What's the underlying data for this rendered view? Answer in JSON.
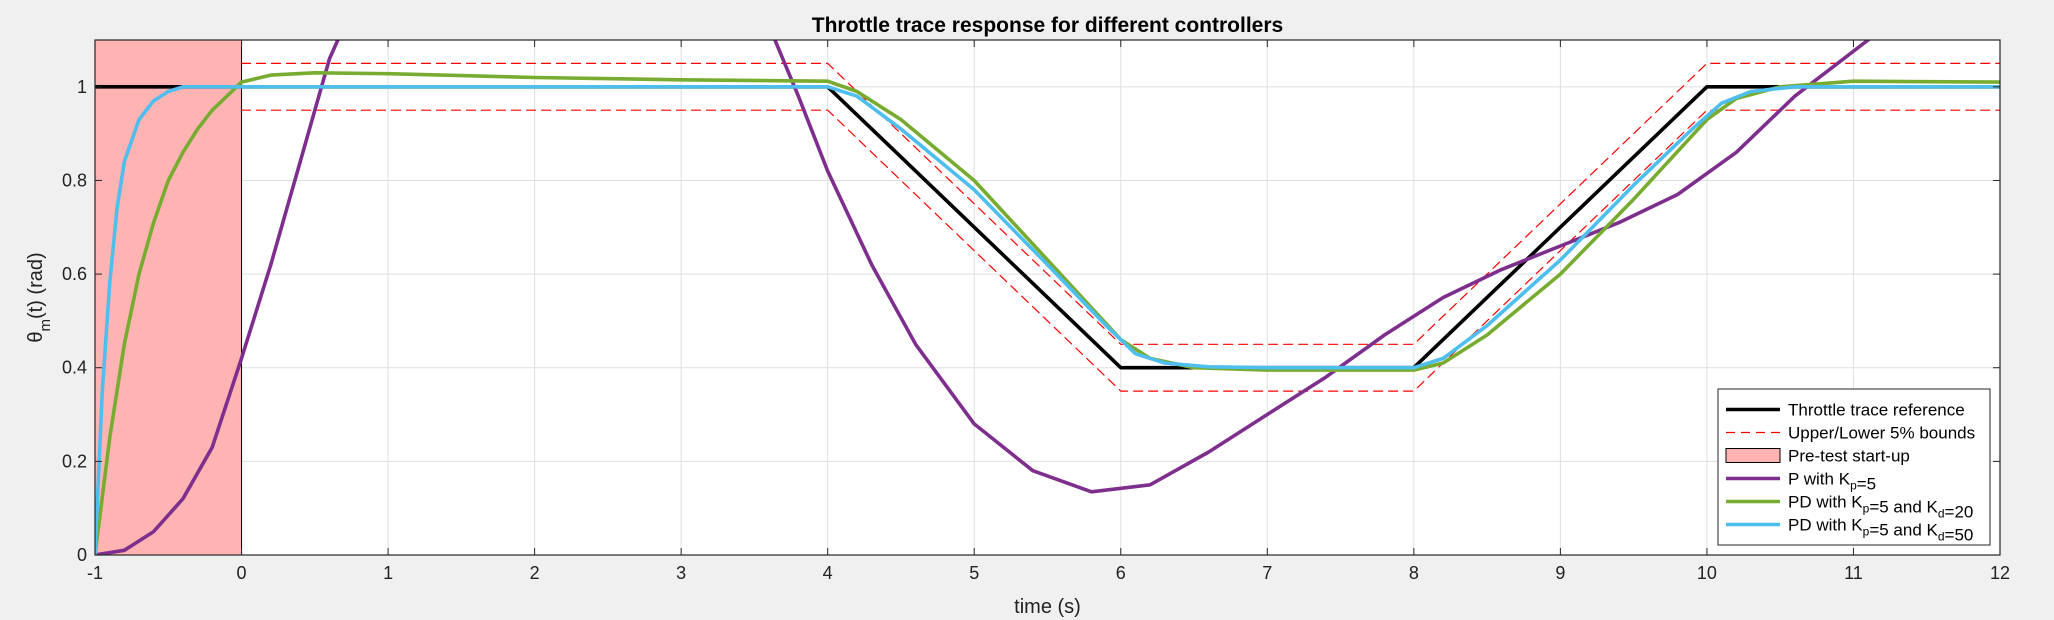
{
  "chart_data": {
    "type": "line",
    "title": "Throttle trace response for different controllers",
    "xlabel": "time (s)",
    "ylabel": {
      "main": "θ",
      "sub": "m",
      "rest": "(t) (rad)"
    },
    "xlim": [
      -1,
      12
    ],
    "ylim": [
      0,
      1.1
    ],
    "xticks": [
      -1,
      0,
      1,
      2,
      3,
      4,
      5,
      6,
      7,
      8,
      9,
      10,
      11,
      12
    ],
    "yticks": [
      0,
      0.2,
      0.4,
      0.6,
      0.8,
      1
    ],
    "grid": true,
    "legend_position": "bottom-right",
    "shaded_region": {
      "name": "Pre-test start-up",
      "x": [
        -1,
        0
      ],
      "color": "#ffb3b3"
    },
    "series": [
      {
        "name": "Throttle trace reference",
        "color": "#000000",
        "style": "solid",
        "x": [
          -1,
          4,
          6,
          8,
          10,
          12
        ],
        "y": [
          1,
          1,
          0.4,
          0.4,
          1,
          1
        ]
      },
      {
        "name": "Upper/Lower 5% bounds",
        "color": "#ff0000",
        "style": "dashed",
        "x": [
          0,
          4,
          6,
          8,
          10,
          12
        ],
        "y": [
          1.05,
          1.05,
          0.45,
          0.45,
          1.05,
          1.05
        ]
      },
      {
        "name": "Upper/Lower 5% bounds",
        "legend": false,
        "color": "#ff0000",
        "style": "dashed",
        "x": [
          0,
          4,
          6,
          8,
          10,
          12
        ],
        "y": [
          0.95,
          0.95,
          0.35,
          0.35,
          0.95,
          0.95
        ]
      },
      {
        "name": "P with K_p=5",
        "color": "#7e2f8e",
        "style": "solid",
        "x": [
          -1,
          -0.8,
          -0.6,
          -0.4,
          -0.2,
          0,
          0.2,
          0.4,
          0.6,
          0.7,
          3.6,
          3.8,
          4,
          4.3,
          4.6,
          5,
          5.4,
          5.8,
          6.2,
          6.6,
          7,
          7.4,
          7.8,
          8.2,
          8.6,
          9,
          9.4,
          9.8,
          10.2,
          10.6,
          11.1
        ],
        "y": [
          0,
          0.01,
          0.05,
          0.12,
          0.23,
          0.42,
          0.62,
          0.84,
          1.06,
          1.13,
          1.13,
          0.98,
          0.82,
          0.62,
          0.45,
          0.28,
          0.18,
          0.135,
          0.15,
          0.22,
          0.3,
          0.38,
          0.47,
          0.55,
          0.61,
          0.66,
          0.71,
          0.77,
          0.86,
          0.98,
          1.1
        ]
      },
      {
        "name": "PD with K_p=5 and K_d=20",
        "color": "#77ac30",
        "style": "solid",
        "x": [
          -1,
          -0.9,
          -0.8,
          -0.7,
          -0.6,
          -0.5,
          -0.4,
          -0.3,
          -0.2,
          -0.1,
          0,
          0.2,
          0.5,
          1,
          2,
          3,
          4,
          4.2,
          4.5,
          5,
          5.5,
          6,
          6.2,
          6.5,
          7,
          7.5,
          8,
          8.2,
          8.5,
          9,
          9.5,
          10,
          10.2,
          10.5,
          11,
          12
        ],
        "y": [
          0,
          0.25,
          0.45,
          0.6,
          0.71,
          0.8,
          0.86,
          0.91,
          0.95,
          0.98,
          1.01,
          1.025,
          1.03,
          1.028,
          1.02,
          1.015,
          1.012,
          0.99,
          0.93,
          0.8,
          0.63,
          0.46,
          0.42,
          0.4,
          0.395,
          0.395,
          0.395,
          0.41,
          0.47,
          0.6,
          0.76,
          0.93,
          0.975,
          1.0,
          1.012,
          1.01
        ]
      },
      {
        "name": "PD with K_p=5 and K_d=50",
        "color": "#4dbeee",
        "style": "solid",
        "x": [
          -1,
          -0.95,
          -0.9,
          -0.85,
          -0.8,
          -0.7,
          -0.6,
          -0.5,
          -0.4,
          -0.2,
          0,
          1,
          2,
          3,
          4,
          4.2,
          4.5,
          5,
          5.5,
          5.9,
          6.1,
          6.3,
          6.6,
          7,
          7.5,
          8,
          8.2,
          8.5,
          9,
          9.5,
          9.9,
          10.1,
          10.3,
          10.6,
          11,
          12
        ],
        "y": [
          0,
          0.35,
          0.58,
          0.74,
          0.84,
          0.93,
          0.97,
          0.99,
          1.0,
          1.0,
          1.0,
          1.0,
          1.0,
          1.0,
          1.0,
          0.98,
          0.91,
          0.78,
          0.62,
          0.49,
          0.43,
          0.41,
          0.402,
          0.4,
          0.4,
          0.4,
          0.42,
          0.49,
          0.63,
          0.79,
          0.91,
          0.965,
          0.99,
          1.0,
          1.0,
          1.0
        ]
      }
    ]
  }
}
